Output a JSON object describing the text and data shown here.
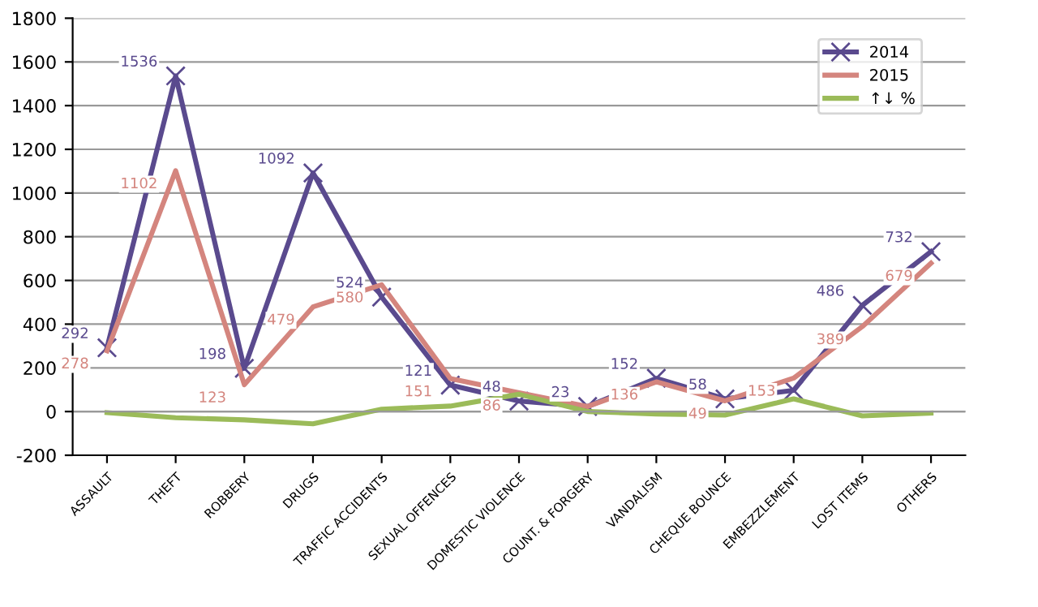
{
  "chart_data": {
    "type": "line",
    "categories": [
      "ASSAULT",
      "THEFT",
      "ROBBERY",
      "DRUGS",
      "TRAFFIC ACCIDENTS",
      "SEXUAL OFFENCES",
      "DOMESTIC VIOLENCE",
      "COUNT. & FORGERY",
      "VANDALISM",
      "CHEQUE BOUNCE",
      "EMBEZZLEMENT",
      "LOST ITEMS",
      "OTHERS"
    ],
    "series": [
      {
        "name": "2014",
        "color": "#5a4a8e",
        "marker": "cross",
        "values": [
          292,
          1536,
          198,
          1092,
          524,
          121,
          48,
          23,
          152,
          58,
          97,
          486,
          732
        ],
        "value_labels": [
          "292",
          "1536",
          "198",
          "1092",
          "524",
          "121",
          "48",
          "23",
          "152",
          "58",
          null,
          "486",
          "732"
        ]
      },
      {
        "name": "2015",
        "color": "#d4857e",
        "marker": "none",
        "values": [
          278,
          1102,
          123,
          479,
          580,
          151,
          86,
          23,
          136,
          49,
          153,
          389,
          679
        ],
        "value_labels": [
          "278",
          "1102",
          "123",
          "479",
          "580",
          "151",
          "86",
          null,
          "136",
          "49",
          "153",
          "389",
          "679"
        ]
      },
      {
        "name": "↑↓ %",
        "color": "#9bbb59",
        "marker": "none",
        "values": [
          -5,
          -28,
          -38,
          -56,
          11,
          25,
          79,
          0,
          -11,
          -16,
          58,
          -20,
          -7
        ]
      }
    ],
    "ylim": [
      -200,
      1800
    ],
    "yticks": [
      -200,
      0,
      200,
      400,
      600,
      800,
      1000,
      1200,
      1400,
      1600,
      1800
    ],
    "grid": "y",
    "legend": "top right"
  }
}
